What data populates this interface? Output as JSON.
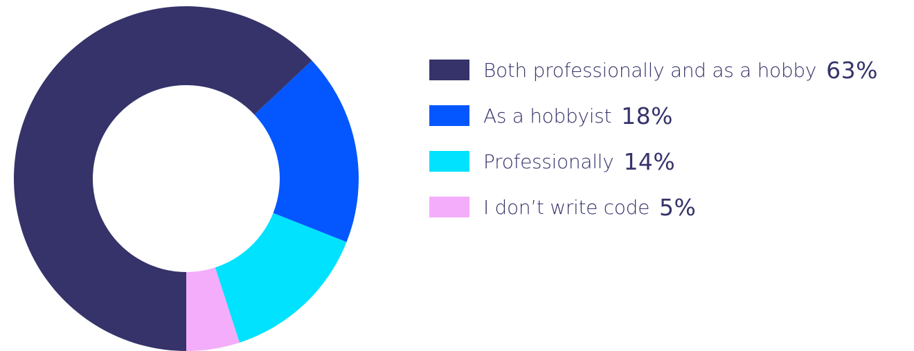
{
  "chart_data": {
    "type": "pie",
    "donut": true,
    "categories": [
      "Both professionally and as a hobby",
      "As a hobbyist",
      "Professionally",
      "I don’t write code"
    ],
    "values": [
      63,
      18,
      14,
      5
    ],
    "value_labels": [
      "63%",
      "18%",
      "14%",
      "5%"
    ],
    "colors": [
      "#35336a",
      "#0457fe",
      "#00e2fd",
      "#f3adfa"
    ],
    "legend_position": "right"
  }
}
